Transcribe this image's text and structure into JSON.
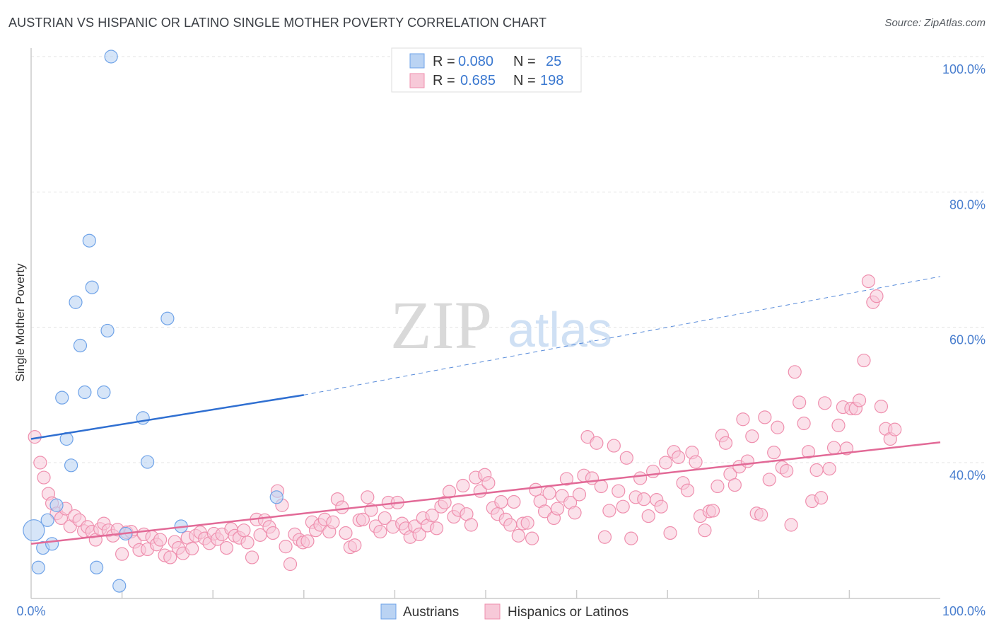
{
  "title": "AUSTRIAN VS HISPANIC OR LATINO SINGLE MOTHER POVERTY CORRELATION CHART",
  "source": "Source: ZipAtlas.com",
  "watermark": {
    "zip": "ZIP",
    "atlas": "atlas"
  },
  "colors": {
    "austrians": "#6fa3e8",
    "austrians_fill": "#bad3f3",
    "hispanics": "#ef8fae",
    "hispanics_fill": "#f7c9d8",
    "blue_text": "#3a78d0",
    "pink_line": "#e26a97",
    "blue_line": "#2f6fd1"
  },
  "legend_top": {
    "rows": [
      {
        "r_label": "R =",
        "r_value": "0.080",
        "n_label": "N =",
        "n_value": "25"
      },
      {
        "r_label": "R =",
        "r_value": "0.685",
        "n_label": "N =",
        "n_value": "198"
      }
    ]
  },
  "legend_bottom": {
    "austrians": "Austrians",
    "hispanics": "Hispanics or Latinos"
  },
  "chart_data": {
    "type": "scatter",
    "xlabel": "",
    "ylabel": "Single Mother Poverty",
    "xlim": [
      0,
      100
    ],
    "ylim": [
      21,
      100
    ],
    "x_tick_labels": [
      "0.0%",
      "100.0%"
    ],
    "y_tick_labels": [
      "40.0%",
      "60.0%",
      "80.0%",
      "100.0%"
    ],
    "y_ticks": [
      40,
      60,
      80,
      100
    ],
    "grid": true,
    "legend_position": "top-center",
    "series": [
      {
        "name": "Austrians",
        "r": 0.08,
        "n": 25,
        "trend": {
          "x0": 0,
          "y0": 43.5,
          "x1": 30,
          "y1": 50.0,
          "dashed_to_x": 100,
          "dashed_to_y": 67.5
        },
        "points": [
          [
            0.3,
            30.0,
            30
          ],
          [
            0.8,
            24.5,
            18
          ],
          [
            1.3,
            27.4,
            18
          ],
          [
            1.8,
            31.5,
            18
          ],
          [
            2.3,
            28.0,
            18
          ],
          [
            2.8,
            33.7,
            18
          ],
          [
            3.4,
            49.6,
            18
          ],
          [
            3.9,
            43.5,
            18
          ],
          [
            4.4,
            39.6,
            18
          ],
          [
            4.9,
            63.7,
            18
          ],
          [
            5.4,
            57.3,
            18
          ],
          [
            5.9,
            50.4,
            18
          ],
          [
            6.4,
            72.8,
            18
          ],
          [
            6.7,
            65.9,
            18
          ],
          [
            7.2,
            24.5,
            18
          ],
          [
            8.0,
            50.4,
            18
          ],
          [
            8.4,
            59.5,
            18
          ],
          [
            8.8,
            100.0,
            18
          ],
          [
            9.7,
            21.8,
            18
          ],
          [
            10.4,
            29.5,
            18
          ],
          [
            12.3,
            46.6,
            18
          ],
          [
            12.8,
            40.1,
            18
          ],
          [
            15.0,
            61.3,
            18
          ],
          [
            16.5,
            30.6,
            18
          ],
          [
            27.0,
            34.9,
            18
          ]
        ]
      },
      {
        "name": "Hispanics or Latinos",
        "r": 0.685,
        "n": 198,
        "trend": {
          "x0": 0,
          "y0": 28.0,
          "x1": 100,
          "y1": 43.0
        },
        "points": [
          [
            0.4,
            43.8
          ],
          [
            1.0,
            40.0
          ],
          [
            1.4,
            37.8
          ],
          [
            1.9,
            35.4
          ],
          [
            2.3,
            34.0
          ],
          [
            2.8,
            32.5
          ],
          [
            3.3,
            31.8
          ],
          [
            3.8,
            33.2
          ],
          [
            4.3,
            30.6
          ],
          [
            4.8,
            32.1
          ],
          [
            5.3,
            31.5
          ],
          [
            5.8,
            29.9
          ],
          [
            6.2,
            30.5
          ],
          [
            6.7,
            29.8
          ],
          [
            7.1,
            28.6
          ],
          [
            7.6,
            30.2
          ],
          [
            8.0,
            31.0
          ],
          [
            8.5,
            30.0
          ],
          [
            9.0,
            29.2
          ],
          [
            9.5,
            30.1
          ],
          [
            10.0,
            26.5
          ],
          [
            10.5,
            29.7
          ],
          [
            11.0,
            29.8
          ],
          [
            11.4,
            28.3
          ],
          [
            11.9,
            27.1
          ],
          [
            12.4,
            29.4
          ],
          [
            12.8,
            27.2
          ],
          [
            13.3,
            29.0
          ],
          [
            13.8,
            27.9
          ],
          [
            14.2,
            28.6
          ],
          [
            14.7,
            26.3
          ],
          [
            15.3,
            26.0
          ],
          [
            15.8,
            28.3
          ],
          [
            16.2,
            27.4
          ],
          [
            16.7,
            26.6
          ],
          [
            17.2,
            28.9
          ],
          [
            17.7,
            27.3
          ],
          [
            18.1,
            29.2
          ],
          [
            18.6,
            29.7
          ],
          [
            19.1,
            28.8
          ],
          [
            19.6,
            28.1
          ],
          [
            20.1,
            29.5
          ],
          [
            20.5,
            28.7
          ],
          [
            21.0,
            29.4
          ],
          [
            21.5,
            27.4
          ],
          [
            22.0,
            30.2
          ],
          [
            22.4,
            29.2
          ],
          [
            22.9,
            28.9
          ],
          [
            23.4,
            30.0
          ],
          [
            23.8,
            28.2
          ],
          [
            24.3,
            26.0
          ],
          [
            24.8,
            31.6
          ],
          [
            25.2,
            29.3
          ],
          [
            25.7,
            31.5
          ],
          [
            26.2,
            30.5
          ],
          [
            26.6,
            29.6
          ],
          [
            27.1,
            35.8
          ],
          [
            27.6,
            33.7
          ],
          [
            28.0,
            27.6
          ],
          [
            28.5,
            25.0
          ],
          [
            29.0,
            29.4
          ],
          [
            29.5,
            28.6
          ],
          [
            29.9,
            28.2
          ],
          [
            30.4,
            28.4
          ],
          [
            30.9,
            31.2
          ],
          [
            31.3,
            30.0
          ],
          [
            31.8,
            30.8
          ],
          [
            32.3,
            31.6
          ],
          [
            32.8,
            29.8
          ],
          [
            33.2,
            31.2
          ],
          [
            33.7,
            34.6
          ],
          [
            34.2,
            33.4
          ],
          [
            34.6,
            29.6
          ],
          [
            35.1,
            27.5
          ],
          [
            35.6,
            27.8
          ],
          [
            36.1,
            31.5
          ],
          [
            36.5,
            31.6
          ],
          [
            37.0,
            34.9
          ],
          [
            37.4,
            33.0
          ],
          [
            37.9,
            30.6
          ],
          [
            38.4,
            29.8
          ],
          [
            38.9,
            31.8
          ],
          [
            39.3,
            34.1
          ],
          [
            39.8,
            30.5
          ],
          [
            40.3,
            34.1
          ],
          [
            40.8,
            31.0
          ],
          [
            41.2,
            30.3
          ],
          [
            41.7,
            29.0
          ],
          [
            42.2,
            30.6
          ],
          [
            42.7,
            29.4
          ],
          [
            43.1,
            31.8
          ],
          [
            43.6,
            30.7
          ],
          [
            44.1,
            32.2
          ],
          [
            44.6,
            30.3
          ],
          [
            45.1,
            33.5
          ],
          [
            45.5,
            34.1
          ],
          [
            46.0,
            35.7
          ],
          [
            46.5,
            32.0
          ],
          [
            47.0,
            33.0
          ],
          [
            47.5,
            36.6
          ],
          [
            47.9,
            32.4
          ],
          [
            48.4,
            30.8
          ],
          [
            48.9,
            37.8
          ],
          [
            49.4,
            35.8
          ],
          [
            49.9,
            38.2
          ],
          [
            50.3,
            37.0
          ],
          [
            50.8,
            33.3
          ],
          [
            51.3,
            32.4
          ],
          [
            51.7,
            34.2
          ],
          [
            52.2,
            31.6
          ],
          [
            52.7,
            30.8
          ],
          [
            53.1,
            34.2
          ],
          [
            53.6,
            29.2
          ],
          [
            54.1,
            31.0
          ],
          [
            54.6,
            31.1
          ],
          [
            55.1,
            28.8
          ],
          [
            55.5,
            36.0
          ],
          [
            56.0,
            34.3
          ],
          [
            56.5,
            32.8
          ],
          [
            57.0,
            35.5
          ],
          [
            57.5,
            31.8
          ],
          [
            57.9,
            33.2
          ],
          [
            58.4,
            35.1
          ],
          [
            58.9,
            37.6
          ],
          [
            59.3,
            34.1
          ],
          [
            59.8,
            32.6
          ],
          [
            60.3,
            35.3
          ],
          [
            60.8,
            38.1
          ],
          [
            61.2,
            43.8
          ],
          [
            61.7,
            37.7
          ],
          [
            62.2,
            42.9
          ],
          [
            62.7,
            36.5
          ],
          [
            63.1,
            29.0
          ],
          [
            63.6,
            32.9
          ],
          [
            64.1,
            42.5
          ],
          [
            64.6,
            35.8
          ],
          [
            65.1,
            33.5
          ],
          [
            65.5,
            40.7
          ],
          [
            66.0,
            28.8
          ],
          [
            66.5,
            34.9
          ],
          [
            67.0,
            37.7
          ],
          [
            67.4,
            34.6
          ],
          [
            67.9,
            32.1
          ],
          [
            68.4,
            38.7
          ],
          [
            68.8,
            34.5
          ],
          [
            69.3,
            33.5
          ],
          [
            69.8,
            40.0
          ],
          [
            70.3,
            29.6
          ],
          [
            70.7,
            41.6
          ],
          [
            71.2,
            40.8
          ],
          [
            71.7,
            37.0
          ],
          [
            72.2,
            35.9
          ],
          [
            72.7,
            41.5
          ],
          [
            73.1,
            40.1
          ],
          [
            73.6,
            32.1
          ],
          [
            74.1,
            30.0
          ],
          [
            74.6,
            32.8
          ],
          [
            75.0,
            32.9
          ],
          [
            75.5,
            36.5
          ],
          [
            76.0,
            44.0
          ],
          [
            76.4,
            42.9
          ],
          [
            76.9,
            38.3
          ],
          [
            77.4,
            36.7
          ],
          [
            77.9,
            39.4
          ],
          [
            78.3,
            46.4
          ],
          [
            78.8,
            40.2
          ],
          [
            79.3,
            43.9
          ],
          [
            79.8,
            32.5
          ],
          [
            80.3,
            32.3
          ],
          [
            80.7,
            46.7
          ],
          [
            81.2,
            37.5
          ],
          [
            81.7,
            41.5
          ],
          [
            82.1,
            45.2
          ],
          [
            82.6,
            39.3
          ],
          [
            83.1,
            38.8
          ],
          [
            83.6,
            30.8
          ],
          [
            84.0,
            53.4
          ],
          [
            84.5,
            48.9
          ],
          [
            85.0,
            45.8
          ],
          [
            85.5,
            41.6
          ],
          [
            85.9,
            34.3
          ],
          [
            86.4,
            38.9
          ],
          [
            86.9,
            34.8
          ],
          [
            87.3,
            48.8
          ],
          [
            87.8,
            39.1
          ],
          [
            88.3,
            42.2
          ],
          [
            88.8,
            45.5
          ],
          [
            89.3,
            48.2
          ],
          [
            89.7,
            42.1
          ],
          [
            90.2,
            48.0
          ],
          [
            90.7,
            48.0
          ],
          [
            91.1,
            49.2
          ],
          [
            91.6,
            55.1
          ],
          [
            92.1,
            66.8
          ],
          [
            92.6,
            63.7
          ],
          [
            93.0,
            64.6
          ],
          [
            93.5,
            48.3
          ],
          [
            94.0,
            45.0
          ],
          [
            94.5,
            43.5
          ],
          [
            95.0,
            44.9
          ]
        ]
      }
    ]
  }
}
